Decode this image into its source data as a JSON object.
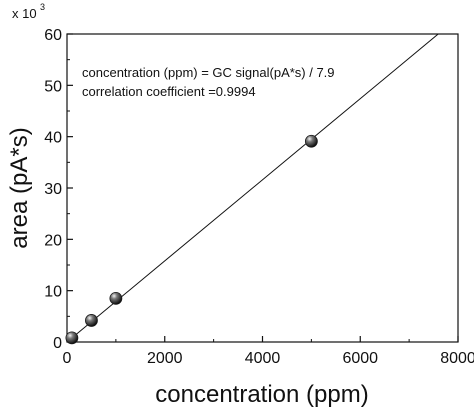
{
  "chart_data": {
    "type": "scatter",
    "title": "",
    "xlabel": "concentration (ppm)",
    "ylabel": "area (pA*s)",
    "y_multiplier_label": "x 10",
    "y_multiplier_exponent": "3",
    "xlim": [
      0,
      8000
    ],
    "ylim": [
      0,
      60
    ],
    "x_ticks": [
      0,
      2000,
      4000,
      6000,
      8000
    ],
    "y_ticks": [
      0,
      10,
      20,
      30,
      40,
      50,
      60
    ],
    "grid": false,
    "legend": "none",
    "annotations": [
      "concentration (ppm) = GC signal(pA*s) / 7.9",
      "correlation coefficient =0.9994"
    ],
    "series": [
      {
        "points": [
          {
            "x": 100,
            "y": 0.8
          },
          {
            "x": 500,
            "y": 4.2
          },
          {
            "x": 1000,
            "y": 8.5
          },
          {
            "x": 5000,
            "y": 39.1
          }
        ]
      }
    ],
    "fit_line": {
      "slope": 0.0079,
      "intercept": 0
    },
    "colors": {
      "marker": "#1a1a1a",
      "line": "#111111",
      "axes": "#111111"
    }
  }
}
